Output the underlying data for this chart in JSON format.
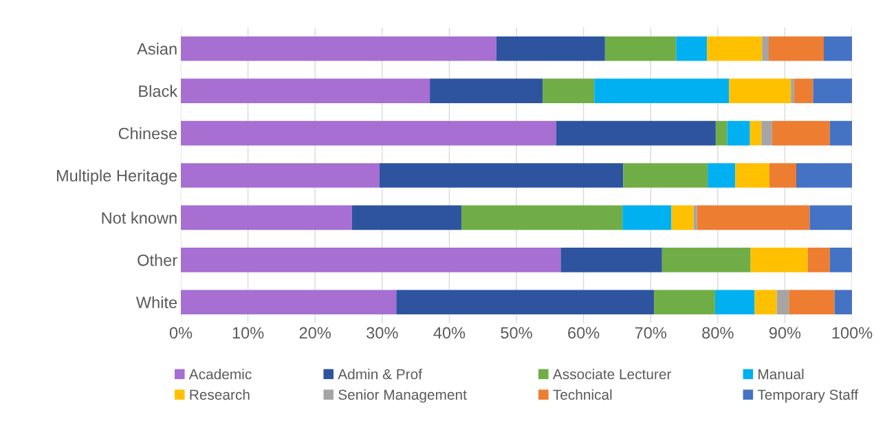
{
  "chart_data": {
    "type": "bar",
    "orientation": "horizontal",
    "stacked": true,
    "categories": [
      "Asian",
      "Black",
      "Chinese",
      "Multiple Heritage",
      "Not known",
      "Other",
      "White"
    ],
    "series": [
      {
        "name": "Academic",
        "color": "#a66fd1",
        "values": [
          47.0,
          37.1,
          55.9,
          29.6,
          25.5,
          56.6,
          32.1
        ]
      },
      {
        "name": "Admin & Prof",
        "color": "#2e54a0",
        "values": [
          16.2,
          16.8,
          23.8,
          36.3,
          16.3,
          15.1,
          38.4
        ]
      },
      {
        "name": "Associate Lecturer",
        "color": "#70ad47",
        "values": [
          10.6,
          7.7,
          1.7,
          12.6,
          24.0,
          13.2,
          9.1
        ]
      },
      {
        "name": "Manual",
        "color": "#00b0f0",
        "values": [
          4.6,
          20.1,
          3.4,
          4.1,
          7.3,
          0,
          5.9
        ]
      },
      {
        "name": "Research",
        "color": "#ffc000",
        "values": [
          8.2,
          9.2,
          1.7,
          5.1,
          3.3,
          8.5,
          3.3
        ]
      },
      {
        "name": "Senior Management",
        "color": "#a5a5a5",
        "values": [
          1.0,
          0.5,
          1.6,
          0,
          0.5,
          0,
          1.8
        ]
      },
      {
        "name": "Technical",
        "color": "#ed7d31",
        "values": [
          8.2,
          2.8,
          8.6,
          4.0,
          16.8,
          3.3,
          6.8
        ]
      },
      {
        "name": "Temporary Staff",
        "color": "#4472c4",
        "values": [
          4.2,
          5.8,
          3.3,
          8.3,
          6.3,
          3.3,
          2.6
        ]
      }
    ],
    "xlim": [
      0,
      100
    ],
    "xticks": [
      {
        "value": 0,
        "label": "0%"
      },
      {
        "value": 10,
        "label": "10%"
      },
      {
        "value": 20,
        "label": "20%"
      },
      {
        "value": 30,
        "label": "30%"
      },
      {
        "value": 40,
        "label": "40%"
      },
      {
        "value": 50,
        "label": "50%"
      },
      {
        "value": 60,
        "label": "60%"
      },
      {
        "value": 70,
        "label": "70%"
      },
      {
        "value": 80,
        "label": "80%"
      },
      {
        "value": 90,
        "label": "90%"
      },
      {
        "value": 100,
        "label": "100%"
      }
    ],
    "grid": "x",
    "legend": "bottom"
  }
}
